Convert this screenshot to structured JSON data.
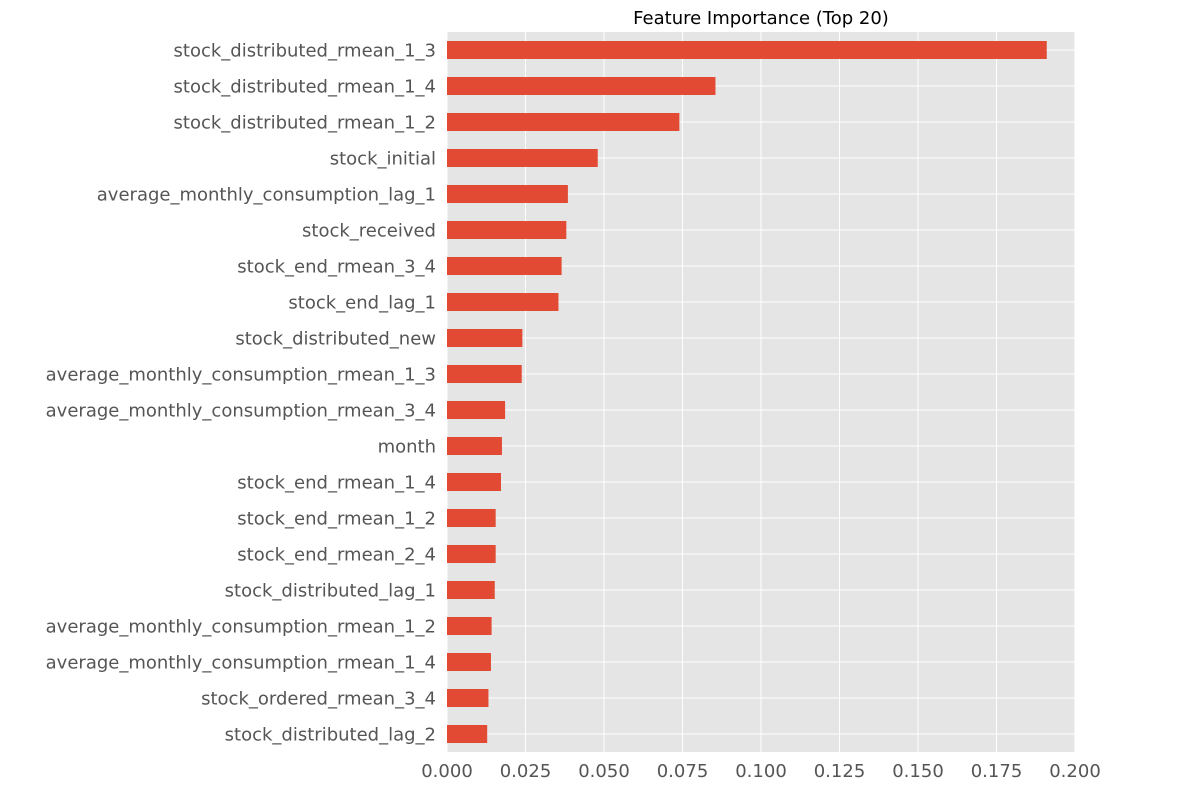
{
  "chart_data": {
    "type": "bar",
    "orientation": "horizontal",
    "title": "Feature Importance (Top 20)",
    "xlabel": "",
    "ylabel": "",
    "xlim": [
      0.0,
      0.2
    ],
    "xticks": [
      "0.000",
      "0.025",
      "0.050",
      "0.075",
      "0.100",
      "0.125",
      "0.150",
      "0.175",
      "0.200"
    ],
    "grid": true,
    "categories": [
      "stock_distributed_rmean_1_3",
      "stock_distributed_rmean_1_4",
      "stock_distributed_rmean_1_2",
      "stock_initial",
      "average_monthly_consumption_lag_1",
      "stock_received",
      "stock_end_rmean_3_4",
      "stock_end_lag_1",
      "stock_distributed_new",
      "average_monthly_consumption_rmean_1_3",
      "average_monthly_consumption_rmean_3_4",
      "month",
      "stock_end_rmean_1_4",
      "stock_end_rmean_1_2",
      "stock_end_rmean_2_4",
      "stock_distributed_lag_1",
      "average_monthly_consumption_rmean_1_2",
      "average_monthly_consumption_rmean_1_4",
      "stock_ordered_rmean_3_4",
      "stock_distributed_lag_2"
    ],
    "values": [
      0.191,
      0.0855,
      0.074,
      0.048,
      0.0385,
      0.038,
      0.0365,
      0.0355,
      0.024,
      0.0238,
      0.0185,
      0.0175,
      0.0172,
      0.0155,
      0.0155,
      0.0152,
      0.0142,
      0.014,
      0.0132,
      0.0128
    ],
    "colors": {
      "bar": "#E24A33",
      "background": "#E5E5E5",
      "grid": "#FFFFFF",
      "text": "#555555"
    }
  }
}
